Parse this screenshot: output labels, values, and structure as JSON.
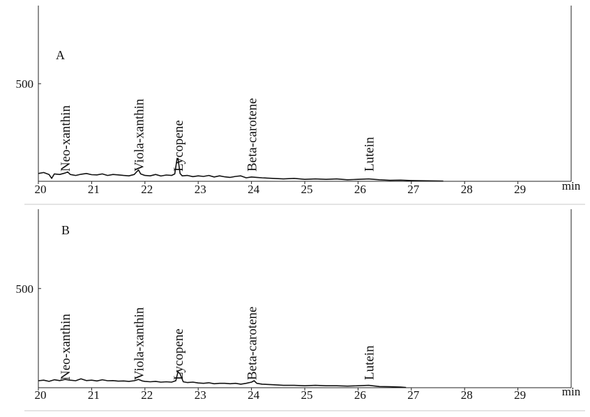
{
  "chart_data": [
    {
      "type": "line",
      "panel_label": "A",
      "x_unit": "min",
      "xlim": [
        20,
        30
      ],
      "x_ticks": [
        20,
        21,
        22,
        23,
        24,
        25,
        26,
        27,
        28,
        29
      ],
      "y_ticks": [
        500
      ],
      "ylim": [
        0,
        900
      ],
      "peaks": [
        {
          "name": "Neo-xanthin",
          "x": 20.5
        },
        {
          "name": "Viola-xanthin",
          "x": 21.88
        },
        {
          "name": "Lycopene",
          "x": 22.62
        },
        {
          "name": "Beta-carotene",
          "x": 24.0
        },
        {
          "name": "Lutein",
          "x": 26.2
        }
      ],
      "series": [
        {
          "x": [
            20.0,
            20.1,
            20.2,
            20.25,
            20.3,
            20.4,
            20.5,
            20.55,
            20.6,
            20.7,
            20.8,
            20.9,
            21.0,
            21.1,
            21.2,
            21.3,
            21.4,
            21.5,
            21.6,
            21.7,
            21.8,
            21.85,
            21.88,
            21.92,
            22.0,
            22.1,
            22.2,
            22.3,
            22.4,
            22.5,
            22.56,
            22.6,
            22.62,
            22.66,
            22.7,
            22.8,
            22.9,
            23.0,
            23.1,
            23.2,
            23.3,
            23.4,
            23.5,
            23.6,
            23.7,
            23.8,
            23.9,
            24.0,
            24.1,
            24.2,
            24.4,
            24.6,
            24.8,
            25.0,
            25.2,
            25.4,
            25.6,
            25.8,
            26.0,
            26.2,
            26.4,
            26.6,
            26.8,
            27.0,
            27.2,
            27.4,
            27.6
          ],
          "y": [
            40,
            45,
            35,
            15,
            38,
            35,
            42,
            48,
            35,
            30,
            36,
            40,
            34,
            33,
            38,
            30,
            35,
            33,
            30,
            28,
            35,
            50,
            58,
            38,
            30,
            28,
            35,
            27,
            32,
            30,
            38,
            110,
            118,
            40,
            28,
            30,
            24,
            28,
            25,
            30,
            22,
            28,
            23,
            20,
            25,
            28,
            18,
            22,
            20,
            18,
            15,
            12,
            15,
            10,
            12,
            10,
            12,
            8,
            10,
            12,
            8,
            5,
            6,
            4,
            3,
            2,
            1
          ]
        }
      ]
    },
    {
      "type": "line",
      "panel_label": "B",
      "x_unit": "min",
      "xlim": [
        20,
        30
      ],
      "x_ticks": [
        20,
        21,
        22,
        23,
        24,
        25,
        26,
        27,
        28,
        29
      ],
      "y_ticks": [
        500
      ],
      "ylim": [
        0,
        900
      ],
      "peaks": [
        {
          "name": "Neo-xanthin",
          "x": 20.5
        },
        {
          "name": "Viola-xanthin",
          "x": 21.88
        },
        {
          "name": "Lycopene",
          "x": 22.62
        },
        {
          "name": "Beta-carotene",
          "x": 24.0
        },
        {
          "name": "Lutein",
          "x": 26.2
        }
      ],
      "series": [
        {
          "x": [
            20.0,
            20.1,
            20.2,
            20.3,
            20.4,
            20.5,
            20.6,
            20.7,
            20.8,
            20.9,
            21.0,
            21.1,
            21.2,
            21.3,
            21.4,
            21.5,
            21.6,
            21.7,
            21.8,
            21.88,
            21.95,
            22.0,
            22.1,
            22.2,
            22.3,
            22.4,
            22.5,
            22.58,
            22.62,
            22.66,
            22.72,
            22.8,
            22.9,
            23.0,
            23.1,
            23.2,
            23.3,
            23.4,
            23.5,
            23.6,
            23.7,
            23.8,
            23.9,
            24.0,
            24.05,
            24.1,
            24.2,
            24.4,
            24.6,
            24.8,
            25.0,
            25.2,
            25.4,
            25.6,
            25.8,
            26.0,
            26.2,
            26.4,
            26.6,
            26.8,
            26.9
          ],
          "y": [
            35,
            38,
            32,
            40,
            36,
            42,
            38,
            35,
            45,
            36,
            38,
            34,
            40,
            35,
            36,
            33,
            34,
            32,
            35,
            42,
            34,
            32,
            30,
            32,
            28,
            30,
            28,
            35,
            80,
            70,
            30,
            26,
            28,
            24,
            22,
            25,
            20,
            22,
            22,
            20,
            22,
            18,
            22,
            28,
            35,
            22,
            18,
            15,
            12,
            12,
            10,
            12,
            10,
            10,
            8,
            10,
            12,
            6,
            5,
            3,
            1
          ]
        }
      ]
    }
  ]
}
